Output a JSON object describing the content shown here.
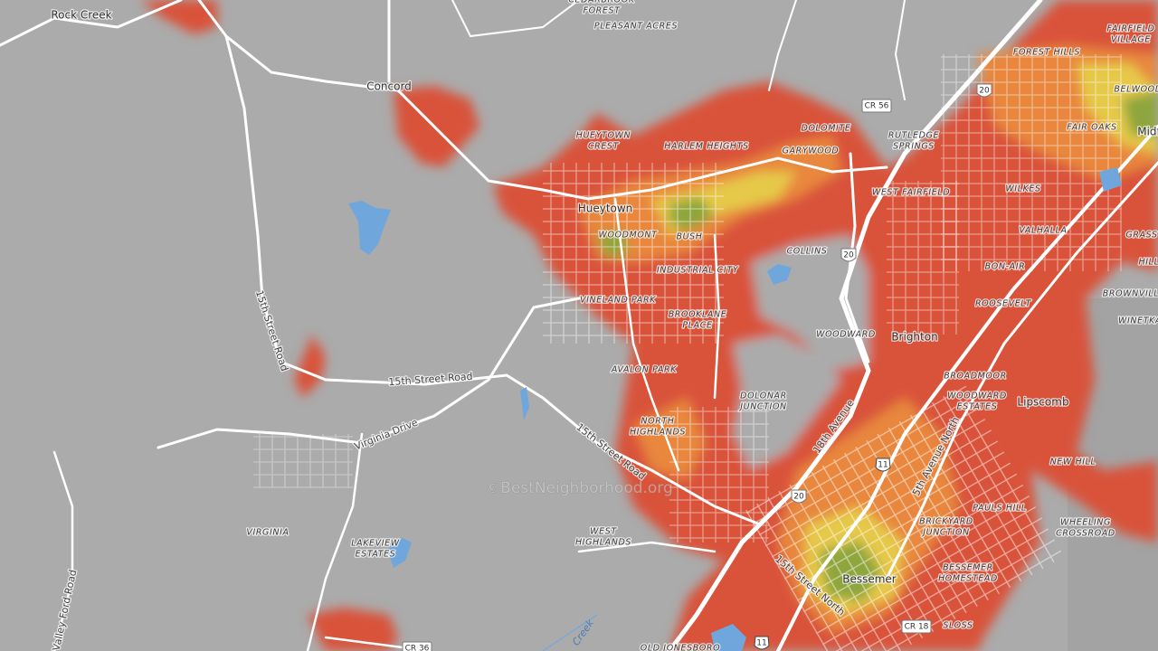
{
  "places": [
    "Rock Creek",
    "Concord",
    [
      "CEDARBROOK",
      "FOREST"
    ],
    "PLEASANT ACRES",
    [
      "HUEYTOWN",
      "CREST"
    ],
    "HARLEM HEIGHTS",
    "DOLOMITE",
    "GARYWOOD",
    [
      "RUTLEDGE",
      "SPRINGS"
    ],
    "WEST FAIRFIELD",
    "Hueytown",
    "WOODMONT",
    "BUSH",
    "COLLINS",
    "INDUSTRIAL CITY",
    "VINELAND PARK",
    [
      "BROOKLANE",
      "PLACE"
    ],
    "WOODWARD",
    "Brighton",
    "AVALON PARK",
    [
      "DOLONAR",
      "JUNCTION"
    ],
    [
      "NORTH",
      "HIGHLANDS"
    ],
    "VIRGINIA",
    [
      "LAKEVIEW",
      "ESTATES"
    ],
    [
      "WEST",
      "HIGHLANDS"
    ],
    "Bessemer",
    "SLOSS",
    [
      "BESSEMER",
      "HOMESTEAD"
    ],
    [
      "BRICKYARD",
      "JUNCTION"
    ],
    "PAULS HILL",
    [
      "WHEELING",
      "CROSSROAD"
    ],
    "NEW HILL",
    "BROADMOOR",
    [
      "WOODWARD",
      "ESTATES"
    ],
    "Lipscomb",
    "ROOSEVELT",
    "BON-AIR",
    "VALHALLA",
    "WILKES",
    "FAIR OAKS",
    "FOREST HILLS",
    [
      "FAIRFIELD",
      "VILLAGE"
    ],
    "BELWOOD",
    "Midf",
    "GRASS",
    "HILL",
    "BROWNVILL",
    "WINETKA",
    "OLD JONESBORO"
  ],
  "roads": [
    "15th Street Road",
    "15th Street Road",
    "Virginia Drive",
    "15th Street Road",
    "18th Avenue",
    "15th Street North",
    "5th Avenue North",
    "Valley Ford Road"
  ],
  "shields": [
    "CR 56",
    "20",
    "20",
    "20",
    "11",
    "11",
    "CR 18",
    "CR 36"
  ],
  "water": "Creek",
  "watermark": "©BestNeighborhood.org"
}
